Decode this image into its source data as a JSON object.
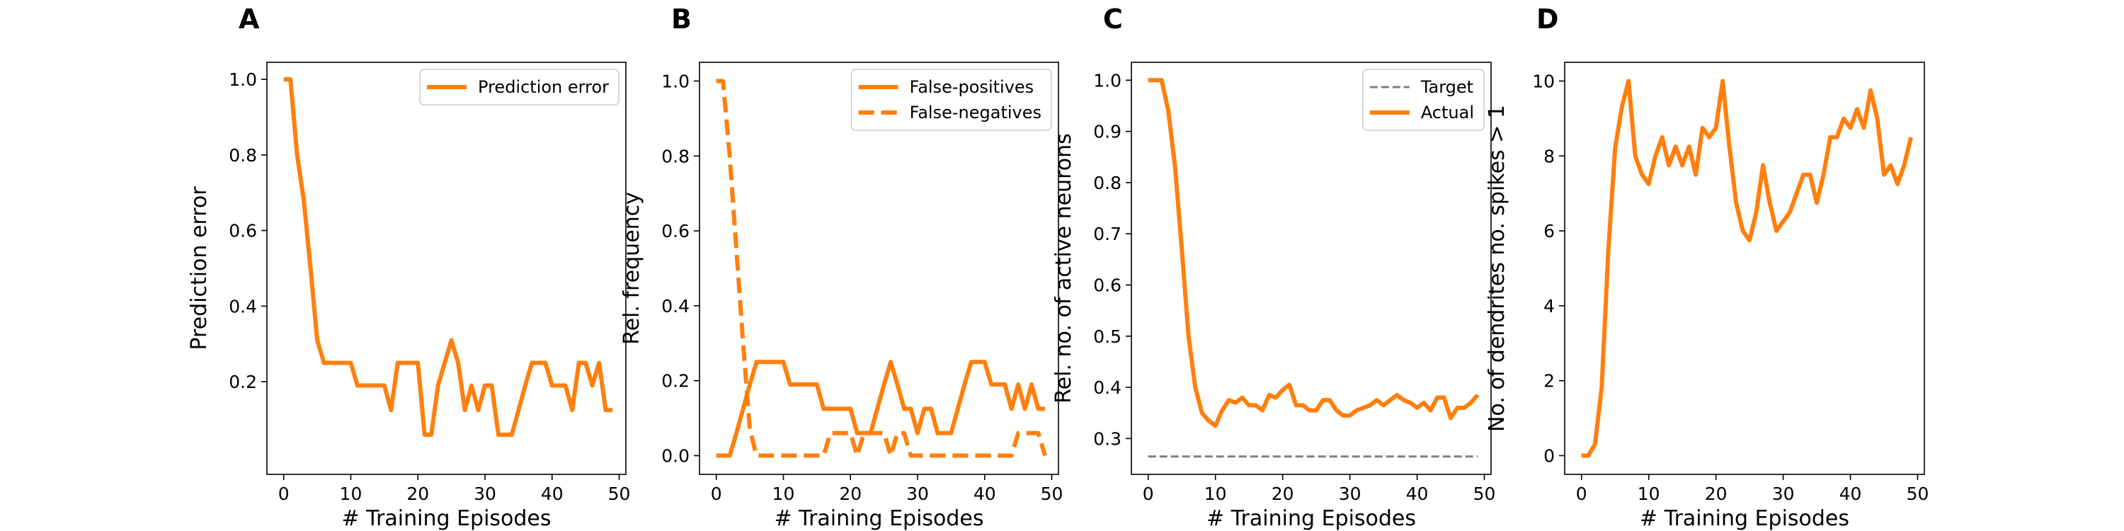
{
  "figure": {
    "accent": "#ff7f0e",
    "target_color": "#7f7f7f"
  },
  "chart_data": [
    {
      "type": "line",
      "panel": "A",
      "xlabel": "# Training Episodes",
      "ylabel": "Prediction error",
      "xlim": [
        -2.5,
        51
      ],
      "ylim": [
        -0.045,
        1.045
      ],
      "xticks": [
        0,
        10,
        20,
        30,
        40,
        50
      ],
      "yticks": [
        0.2,
        0.4,
        0.6,
        0.8,
        1.0
      ],
      "ytick_decimals": 1,
      "legend_position": "top-right",
      "series": [
        {
          "name": "Prediction error",
          "color": "#ff7f0e",
          "style": "solid",
          "x": [
            0,
            1,
            2,
            3,
            4,
            5,
            6,
            7,
            8,
            9,
            10,
            11,
            12,
            13,
            14,
            15,
            16,
            17,
            18,
            19,
            20,
            21,
            22,
            23,
            24,
            25,
            26,
            27,
            28,
            29,
            30,
            31,
            32,
            33,
            34,
            35,
            36,
            37,
            38,
            39,
            40,
            41,
            42,
            43,
            44,
            45,
            46,
            47,
            48,
            49
          ],
          "y": [
            1.0,
            1.0,
            0.8,
            0.68,
            0.5,
            0.31,
            0.25,
            0.25,
            0.25,
            0.25,
            0.25,
            0.19,
            0.19,
            0.19,
            0.19,
            0.19,
            0.125,
            0.25,
            0.25,
            0.25,
            0.25,
            0.06,
            0.06,
            0.19,
            0.25,
            0.31,
            0.25,
            0.125,
            0.19,
            0.125,
            0.19,
            0.19,
            0.06,
            0.06,
            0.06,
            0.125,
            0.19,
            0.25,
            0.25,
            0.25,
            0.19,
            0.19,
            0.19,
            0.125,
            0.25,
            0.25,
            0.19,
            0.25,
            0.125,
            0.125
          ]
        }
      ]
    },
    {
      "type": "line",
      "panel": "B",
      "xlabel": "# Training Episodes",
      "ylabel": "Rel. frequency",
      "xlim": [
        -2.5,
        51
      ],
      "ylim": [
        -0.05,
        1.05
      ],
      "xticks": [
        0,
        10,
        20,
        30,
        40,
        50
      ],
      "yticks": [
        0.0,
        0.2,
        0.4,
        0.6,
        0.8,
        1.0
      ],
      "ytick_decimals": 1,
      "legend_position": "top-right",
      "series": [
        {
          "name": "False-positives",
          "color": "#ff7f0e",
          "style": "solid",
          "x": [
            0,
            1,
            2,
            3,
            4,
            5,
            6,
            7,
            8,
            9,
            10,
            11,
            12,
            13,
            14,
            15,
            16,
            17,
            18,
            19,
            20,
            21,
            22,
            23,
            24,
            25,
            26,
            27,
            28,
            29,
            30,
            31,
            32,
            33,
            34,
            35,
            36,
            37,
            38,
            39,
            40,
            41,
            42,
            43,
            44,
            45,
            46,
            47,
            48,
            49
          ],
          "y": [
            0.0,
            0.0,
            0.0,
            0.06,
            0.125,
            0.19,
            0.25,
            0.25,
            0.25,
            0.25,
            0.25,
            0.19,
            0.19,
            0.19,
            0.19,
            0.19,
            0.125,
            0.125,
            0.125,
            0.125,
            0.125,
            0.06,
            0.06,
            0.06,
            0.125,
            0.19,
            0.25,
            0.19,
            0.125,
            0.125,
            0.06,
            0.125,
            0.125,
            0.06,
            0.06,
            0.06,
            0.125,
            0.19,
            0.25,
            0.25,
            0.25,
            0.19,
            0.19,
            0.19,
            0.125,
            0.19,
            0.125,
            0.19,
            0.125,
            0.125
          ]
        },
        {
          "name": "False-negatives",
          "color": "#ff7f0e",
          "style": "dashed",
          "x": [
            0,
            1,
            2,
            3,
            4,
            5,
            6,
            7,
            8,
            9,
            10,
            11,
            12,
            13,
            14,
            15,
            16,
            17,
            18,
            19,
            20,
            21,
            22,
            23,
            24,
            25,
            26,
            27,
            28,
            29,
            30,
            31,
            32,
            33,
            34,
            35,
            36,
            37,
            38,
            39,
            40,
            41,
            42,
            43,
            44,
            45,
            46,
            47,
            48,
            49
          ],
          "y": [
            1.0,
            1.0,
            0.8,
            0.55,
            0.3,
            0.07,
            0.0,
            0.0,
            0.0,
            0.0,
            0.0,
            0.0,
            0.0,
            0.0,
            0.0,
            0.0,
            0.0,
            0.06,
            0.06,
            0.06,
            0.06,
            0.0,
            0.06,
            0.06,
            0.06,
            0.06,
            0.0,
            0.06,
            0.06,
            0.0,
            0.0,
            0.0,
            0.0,
            0.0,
            0.0,
            0.0,
            0.0,
            0.0,
            0.0,
            0.0,
            0.0,
            0.0,
            0.0,
            0.0,
            0.0,
            0.06,
            0.06,
            0.06,
            0.06,
            0.0
          ]
        }
      ]
    },
    {
      "type": "line",
      "panel": "C",
      "xlabel": "# Training Episodes",
      "ylabel": "Rel. no. of active neurons",
      "xlim": [
        -2.5,
        51
      ],
      "ylim": [
        0.23,
        1.035
      ],
      "xticks": [
        0,
        10,
        20,
        30,
        40,
        50
      ],
      "yticks": [
        0.3,
        0.4,
        0.5,
        0.6,
        0.7,
        0.8,
        0.9,
        1.0
      ],
      "ytick_decimals": 1,
      "legend_position": "top-right",
      "series": [
        {
          "name": "Target",
          "color": "#7f7f7f",
          "style": "dashed-thin",
          "x": [
            0,
            49
          ],
          "y": [
            0.265,
            0.265
          ]
        },
        {
          "name": "Actual",
          "color": "#ff7f0e",
          "style": "solid",
          "x": [
            0,
            1,
            2,
            3,
            4,
            5,
            6,
            7,
            8,
            9,
            10,
            11,
            12,
            13,
            14,
            15,
            16,
            17,
            18,
            19,
            20,
            21,
            22,
            23,
            24,
            25,
            26,
            27,
            28,
            29,
            30,
            31,
            32,
            33,
            34,
            35,
            36,
            37,
            38,
            39,
            40,
            41,
            42,
            43,
            44,
            45,
            46,
            47,
            48,
            49
          ],
          "y": [
            1.0,
            1.0,
            1.0,
            0.94,
            0.83,
            0.67,
            0.5,
            0.4,
            0.35,
            0.335,
            0.325,
            0.355,
            0.375,
            0.37,
            0.38,
            0.365,
            0.365,
            0.355,
            0.385,
            0.38,
            0.395,
            0.405,
            0.365,
            0.365,
            0.355,
            0.355,
            0.375,
            0.375,
            0.355,
            0.345,
            0.345,
            0.355,
            0.36,
            0.365,
            0.375,
            0.365,
            0.375,
            0.385,
            0.375,
            0.37,
            0.36,
            0.37,
            0.355,
            0.38,
            0.38,
            0.34,
            0.36,
            0.36,
            0.37,
            0.385
          ]
        }
      ]
    },
    {
      "type": "line",
      "panel": "D",
      "xlabel": "# Training Episodes",
      "ylabel": "No. of dendrites no. spikes > 1",
      "xlim": [
        -2.5,
        51
      ],
      "ylim": [
        -0.5,
        10.5
      ],
      "xticks": [
        0,
        10,
        20,
        30,
        40,
        50
      ],
      "yticks": [
        0,
        2,
        4,
        6,
        8,
        10
      ],
      "ytick_decimals": 0,
      "series": [
        {
          "color": "#ff7f0e",
          "style": "solid",
          "x": [
            0,
            1,
            2,
            3,
            4,
            5,
            6,
            7,
            8,
            9,
            10,
            11,
            12,
            13,
            14,
            15,
            16,
            17,
            18,
            19,
            20,
            21,
            22,
            23,
            24,
            25,
            26,
            27,
            28,
            29,
            30,
            31,
            32,
            33,
            34,
            35,
            36,
            37,
            38,
            39,
            40,
            41,
            42,
            43,
            44,
            45,
            46,
            47,
            48,
            49
          ],
          "y": [
            0.0,
            0.0,
            0.3,
            1.8,
            5.5,
            8.2,
            9.3,
            10.0,
            8.0,
            7.5,
            7.25,
            8.0,
            8.5,
            7.75,
            8.25,
            7.75,
            8.25,
            7.5,
            8.75,
            8.5,
            8.75,
            10.0,
            8.25,
            6.75,
            6.0,
            5.75,
            6.5,
            7.75,
            6.75,
            6.0,
            6.25,
            6.5,
            7.0,
            7.5,
            7.5,
            6.75,
            7.5,
            8.5,
            8.5,
            9.0,
            8.75,
            9.25,
            8.75,
            9.75,
            9.0,
            7.5,
            7.75,
            7.25,
            7.75,
            8.5
          ]
        }
      ]
    }
  ]
}
